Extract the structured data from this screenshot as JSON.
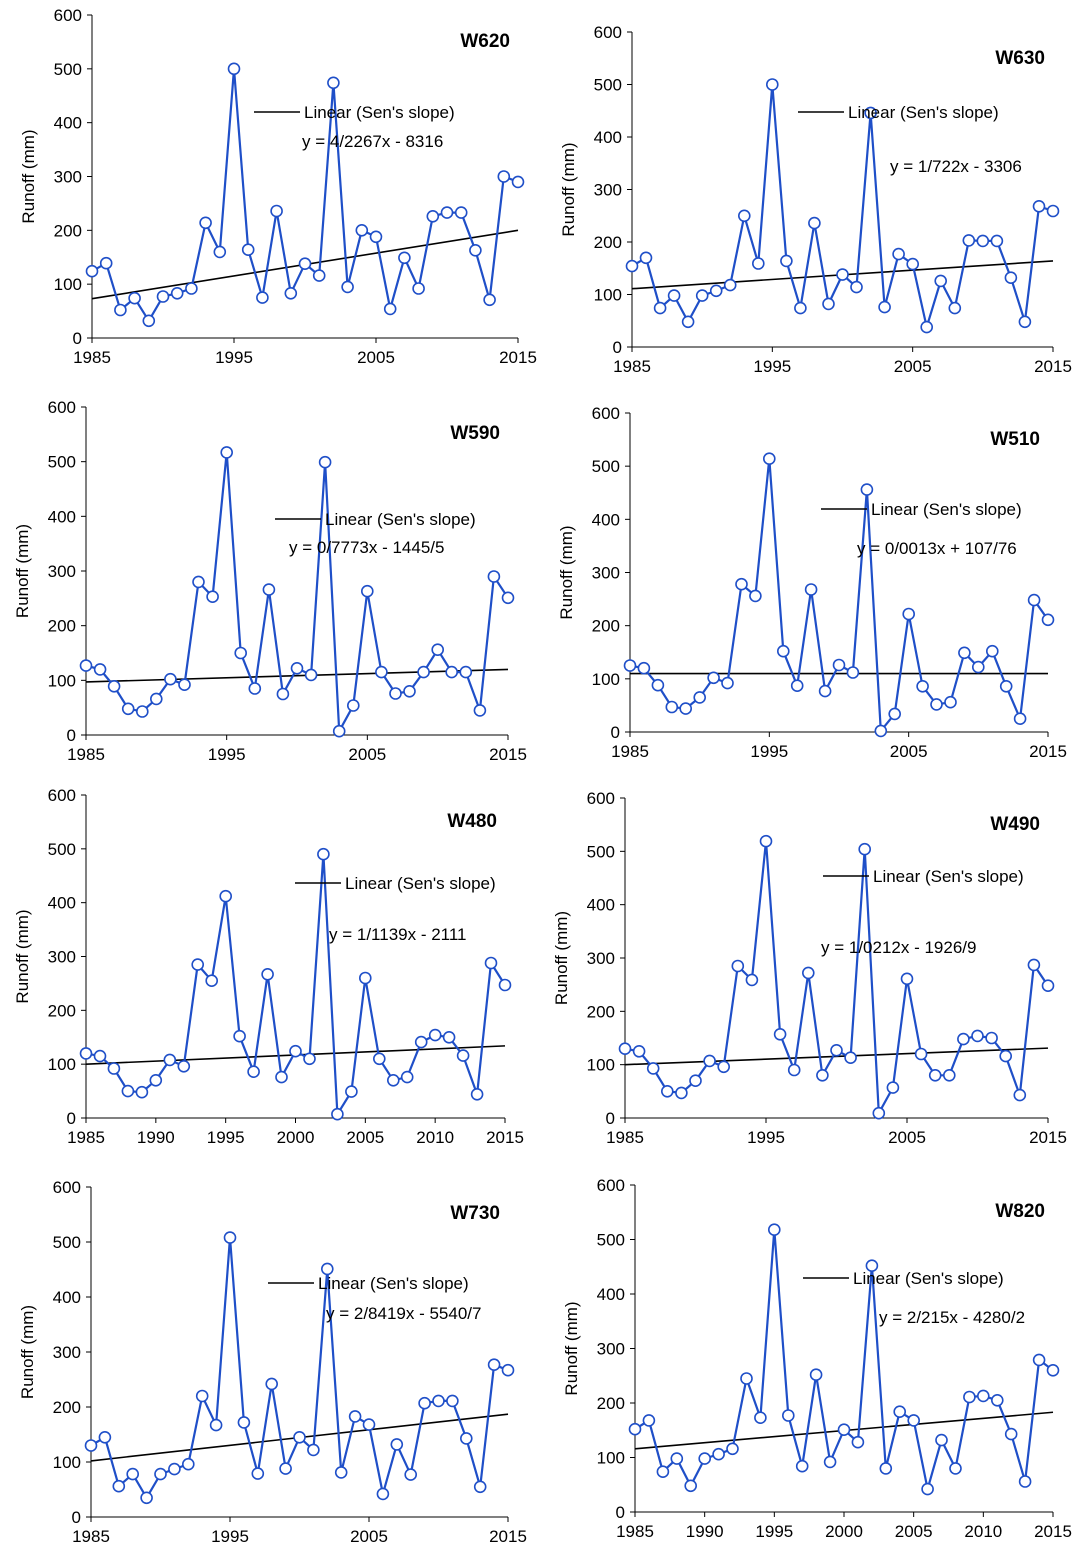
{
  "colors": {
    "series": "#1f4fc8",
    "marker_fill": "#ffffff",
    "trend": "#000000",
    "axis": "#000000"
  },
  "chart_data": [
    {
      "type": "line",
      "title": "W620",
      "ylabel": "Runoff  (mm)",
      "xlim": [
        1985,
        2015
      ],
      "ylim": [
        0,
        600
      ],
      "yticks": [
        0,
        100,
        200,
        300,
        400,
        500,
        600
      ],
      "xticks": [
        1985,
        1995,
        2005,
        2015
      ],
      "grid": false,
      "legend": "Linear (Sen's slope)",
      "equation": "y = 4/2267x - 8316",
      "x": [
        1985,
        1986,
        1987,
        1988,
        1989,
        1990,
        1991,
        1992,
        1993,
        1994,
        1995,
        1996,
        1997,
        1998,
        1999,
        2000,
        2001,
        2002,
        2003,
        2004,
        2005,
        2006,
        2007,
        2008,
        2009,
        2010,
        2011,
        2012,
        2013,
        2014,
        2015
      ],
      "values": [
        124,
        139,
        52,
        74,
        32,
        77,
        83,
        92,
        214,
        160,
        500,
        164,
        75,
        236,
        83,
        138,
        116,
        474,
        95,
        200,
        188,
        54,
        149,
        92,
        226,
        233,
        233,
        163,
        71,
        300,
        290
      ],
      "trend": [
        73,
        200
      ]
    },
    {
      "type": "line",
      "title": "W630",
      "ylabel": "Runoff  (mm)",
      "xlim": [
        1985,
        2015
      ],
      "ylim": [
        0,
        600
      ],
      "yticks": [
        0,
        100,
        200,
        300,
        400,
        500,
        600
      ],
      "xticks": [
        1985,
        1995,
        2005,
        2015
      ],
      "grid": false,
      "legend": "Linear (Sen's slope)",
      "equation": "y = 1/722x - 3306",
      "x": [
        1985,
        1986,
        1987,
        1988,
        1989,
        1990,
        1991,
        1992,
        1993,
        1994,
        1995,
        1996,
        1997,
        1998,
        1999,
        2000,
        2001,
        2002,
        2003,
        2004,
        2005,
        2006,
        2007,
        2008,
        2009,
        2010,
        2011,
        2012,
        2013,
        2014,
        2015
      ],
      "values": [
        154,
        170,
        74,
        98,
        48,
        98,
        107,
        118,
        250,
        159,
        500,
        164,
        74,
        236,
        82,
        138,
        114,
        446,
        76,
        177,
        158,
        38,
        126,
        74,
        203,
        202,
        202,
        132,
        48,
        268,
        259
      ],
      "trend": [
        111,
        164
      ]
    },
    {
      "type": "line",
      "title": "W590",
      "ylabel": "Runoff  (mm)",
      "xlim": [
        1985,
        2015
      ],
      "ylim": [
        0,
        600
      ],
      "yticks": [
        0,
        100,
        200,
        300,
        400,
        500,
        600
      ],
      "xticks": [
        1985,
        1995,
        2005,
        2015
      ],
      "grid": false,
      "legend": "Linear (Sen's slope)",
      "equation": "y = 0/7773x - 1445/5",
      "x": [
        1985,
        1986,
        1987,
        1988,
        1989,
        1990,
        1991,
        1992,
        1993,
        1994,
        1995,
        1996,
        1997,
        1998,
        1999,
        2000,
        2001,
        2002,
        2003,
        2004,
        2005,
        2006,
        2007,
        2008,
        2009,
        2010,
        2011,
        2012,
        2013,
        2014,
        2015
      ],
      "values": [
        127,
        120,
        89,
        48,
        43,
        66,
        102,
        92,
        280,
        253,
        517,
        150,
        85,
        266,
        75,
        122,
        110,
        499,
        7,
        54,
        263,
        115,
        76,
        80,
        115,
        156,
        115,
        115,
        45,
        290,
        251
      ],
      "trend": [
        97,
        120
      ]
    },
    {
      "type": "line",
      "title": "W510",
      "ylabel": "Runoff  (mm)",
      "xlim": [
        1985,
        2015
      ],
      "ylim": [
        0,
        600
      ],
      "yticks": [
        0,
        100,
        200,
        300,
        400,
        500,
        600
      ],
      "xticks": [
        1985,
        1995,
        2005,
        2015
      ],
      "grid": false,
      "legend": "Linear (Sen's slope)",
      "equation": "y = 0/0013x + 107/76",
      "x": [
        1985,
        1986,
        1987,
        1988,
        1989,
        1990,
        1991,
        1992,
        1993,
        1994,
        1995,
        1996,
        1997,
        1998,
        1999,
        2000,
        2001,
        2002,
        2003,
        2004,
        2005,
        2006,
        2007,
        2008,
        2009,
        2010,
        2011,
        2012,
        2013,
        2014,
        2015
      ],
      "values": [
        125,
        120,
        88,
        47,
        44,
        65,
        102,
        92,
        278,
        256,
        514,
        152,
        87,
        268,
        77,
        126,
        112,
        456,
        2,
        34,
        222,
        86,
        52,
        56,
        149,
        122,
        152,
        86,
        25,
        248,
        211
      ],
      "trend": [
        110,
        110
      ]
    },
    {
      "type": "line",
      "title": "W480",
      "ylabel": "Runoff (mm)",
      "xlim": [
        1985,
        2015
      ],
      "ylim": [
        0,
        600
      ],
      "yticks": [
        0,
        100,
        200,
        300,
        400,
        500,
        600
      ],
      "xticks": [
        1985,
        1990,
        1995,
        2000,
        2005,
        2010,
        2015
      ],
      "grid": false,
      "legend": "Linear (Sen's slope)",
      "equation": "y = 1/1139x - 2111",
      "x": [
        1985,
        1986,
        1987,
        1988,
        1989,
        1990,
        1991,
        1992,
        1993,
        1994,
        1995,
        1996,
        1997,
        1998,
        1999,
        2000,
        2001,
        2002,
        2003,
        2004,
        2005,
        2006,
        2007,
        2008,
        2009,
        2010,
        2011,
        2012,
        2013,
        2014,
        2015
      ],
      "values": [
        120,
        115,
        92,
        50,
        48,
        70,
        108,
        96,
        285,
        255,
        412,
        152,
        86,
        267,
        76,
        124,
        110,
        490,
        7,
        49,
        260,
        110,
        70,
        76,
        141,
        154,
        150,
        116,
        44,
        288,
        247
      ],
      "trend": [
        100,
        134
      ]
    },
    {
      "type": "line",
      "title": "W490",
      "ylabel": "Runoff  (mm)",
      "xlim": [
        1985,
        2015
      ],
      "ylim": [
        0,
        600
      ],
      "yticks": [
        0,
        100,
        200,
        300,
        400,
        500,
        600
      ],
      "xticks": [
        1985,
        1995,
        2005,
        2015
      ],
      "grid": false,
      "legend": "Linear (Sen's slope)",
      "equation": "y = 1/0212x - 1926/9",
      "x": [
        1985,
        1986,
        1987,
        1988,
        1989,
        1990,
        1991,
        1992,
        1993,
        1994,
        1995,
        1996,
        1997,
        1998,
        1999,
        2000,
        2001,
        2002,
        2003,
        2004,
        2005,
        2006,
        2007,
        2008,
        2009,
        2010,
        2011,
        2012,
        2013,
        2014,
        2015
      ],
      "values": [
        130,
        125,
        93,
        50,
        47,
        70,
        107,
        96,
        285,
        259,
        519,
        157,
        90,
        272,
        80,
        127,
        113,
        504,
        9,
        57,
        261,
        120,
        80,
        80,
        148,
        154,
        150,
        116,
        43,
        287,
        248
      ],
      "trend": [
        100,
        131
      ]
    },
    {
      "type": "line",
      "title": "W730",
      "ylabel": "Runoff  (mm)",
      "xlim": [
        1985,
        2015
      ],
      "ylim": [
        0,
        600
      ],
      "yticks": [
        0,
        100,
        200,
        300,
        400,
        500,
        600
      ],
      "xticks": [
        1985,
        1995,
        2005,
        2015
      ],
      "grid": false,
      "legend": "Linear (Sen's slope)",
      "equation": "y = 2/8419x - 5540/7",
      "x": [
        1985,
        1986,
        1987,
        1988,
        1989,
        1990,
        1991,
        1992,
        1993,
        1994,
        1995,
        1996,
        1997,
        1998,
        1999,
        2000,
        2001,
        2002,
        2003,
        2004,
        2005,
        2006,
        2007,
        2008,
        2009,
        2010,
        2011,
        2012,
        2013,
        2014,
        2015
      ],
      "values": [
        130,
        145,
        56,
        78,
        35,
        78,
        87,
        96,
        220,
        167,
        508,
        172,
        79,
        242,
        88,
        145,
        122,
        451,
        81,
        183,
        168,
        42,
        132,
        77,
        207,
        211,
        211,
        143,
        55,
        277,
        267
      ],
      "trend": [
        102,
        187
      ]
    },
    {
      "type": "line",
      "title": "W820",
      "ylabel": "Runoff  (mm)",
      "xlim": [
        1985,
        2015
      ],
      "ylim": [
        0,
        600
      ],
      "yticks": [
        0,
        100,
        200,
        300,
        400,
        500,
        600
      ],
      "xticks": [
        1985,
        1990,
        1995,
        2000,
        2005,
        2010,
        2015
      ],
      "grid": false,
      "legend": "Linear (Sen's slope)",
      "equation": "y = 2/215x - 4280/2",
      "x": [
        1985,
        1986,
        1987,
        1988,
        1989,
        1990,
        1991,
        1992,
        1993,
        1994,
        1995,
        1996,
        1997,
        1998,
        1999,
        2000,
        2001,
        2002,
        2003,
        2004,
        2005,
        2006,
        2007,
        2008,
        2009,
        2010,
        2011,
        2012,
        2013,
        2014,
        2015
      ],
      "values": [
        152,
        168,
        74,
        98,
        48,
        98,
        106,
        116,
        245,
        173,
        518,
        177,
        84,
        252,
        92,
        151,
        128,
        452,
        80,
        184,
        168,
        42,
        132,
        80,
        211,
        213,
        205,
        143,
        56,
        279,
        260
      ],
      "trend": [
        116,
        183
      ]
    }
  ]
}
